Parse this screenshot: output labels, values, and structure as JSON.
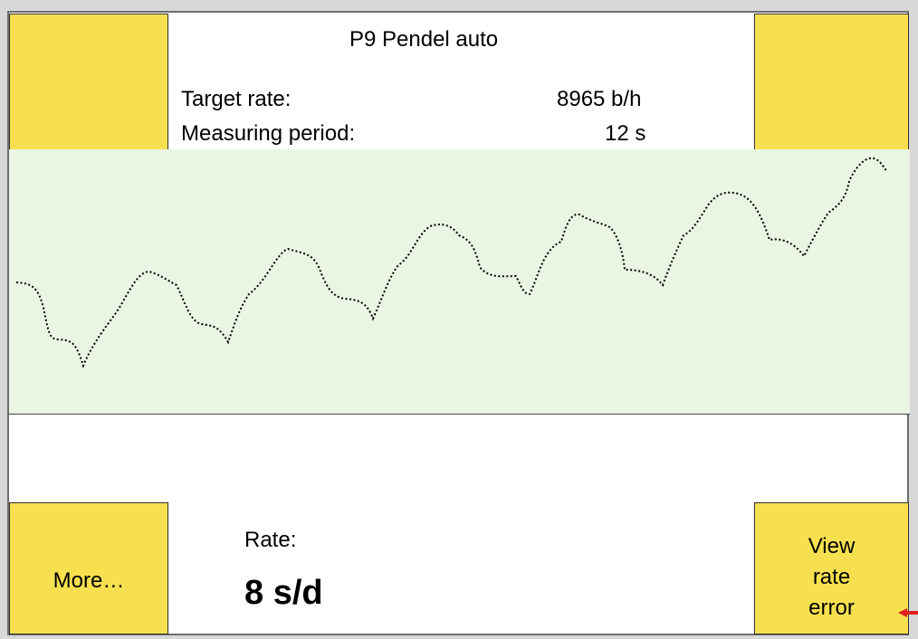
{
  "header": {
    "title": "P9 Pendel auto",
    "target_rate": {
      "label": "Target rate:",
      "value": "8965 b/h"
    },
    "measuring_period": {
      "label": "Measuring period:",
      "value": "12 s"
    }
  },
  "rate": {
    "label": "Rate:",
    "value": "8 s/d"
  },
  "buttons": {
    "more": "More…",
    "view_rate_error": [
      "View",
      "rate",
      "error"
    ]
  }
}
